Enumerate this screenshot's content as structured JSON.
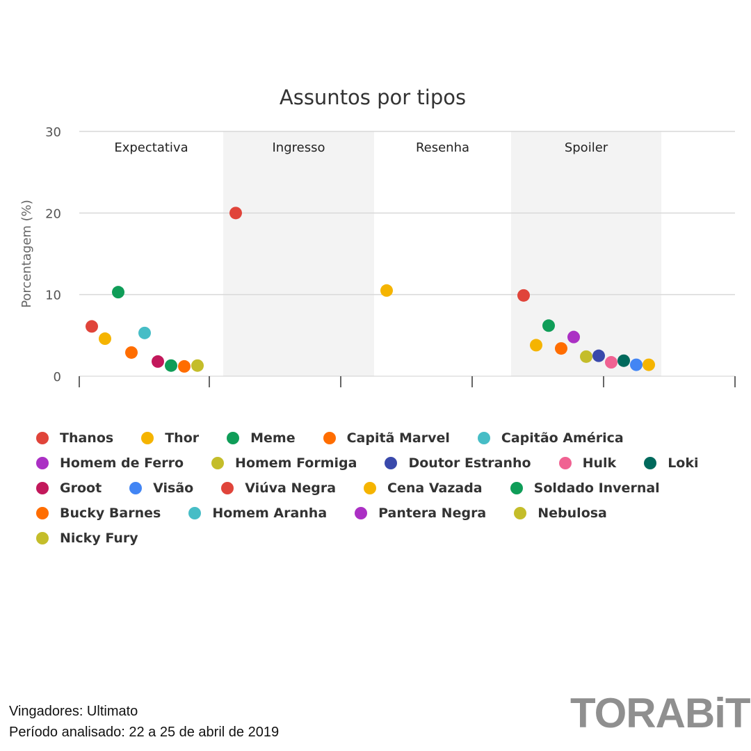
{
  "chart_data": {
    "type": "scatter",
    "title": "Assuntos por tipos",
    "ylabel": "Porcentagem (%)",
    "ylim": [
      0,
      30
    ],
    "yticks": [
      0,
      10,
      20,
      30
    ],
    "grid": true,
    "legend_position": "bottom",
    "bands": [
      "Expectativa",
      "Ingresso",
      "Resenha",
      "Spoiler"
    ],
    "series": [
      {
        "name": "Thanos",
        "color": "#e0443a",
        "points": [
          {
            "band": "Expectativa",
            "y": 6.1
          },
          {
            "band": "Ingresso",
            "y": 20.0
          },
          {
            "band": "Spoiler",
            "y": 9.9
          }
        ]
      },
      {
        "name": "Thor",
        "color": "#f5b400",
        "points": [
          {
            "band": "Expectativa",
            "y": 4.6
          },
          {
            "band": "Resenha",
            "y": 10.5
          },
          {
            "band": "Spoiler",
            "y": 3.8
          }
        ]
      },
      {
        "name": "Meme",
        "color": "#0f9d58",
        "points": [
          {
            "band": "Expectativa",
            "y": 10.3
          },
          {
            "band": "Spoiler",
            "y": 6.2
          }
        ]
      },
      {
        "name": "Capitã Marvel",
        "color": "#ff6d00",
        "points": [
          {
            "band": "Expectativa",
            "y": 2.9
          },
          {
            "band": "Spoiler",
            "y": 3.4
          }
        ]
      },
      {
        "name": "Capitão América",
        "color": "#46bdc6",
        "points": [
          {
            "band": "Expectativa",
            "y": 5.3
          }
        ]
      },
      {
        "name": "Homem de Ferro",
        "color": "#ab30c4",
        "points": [
          {
            "band": "Spoiler",
            "y": 4.8
          }
        ]
      },
      {
        "name": "Homem Formiga",
        "color": "#c4bd2a",
        "points": [
          {
            "band": "Spoiler",
            "y": 2.4
          }
        ]
      },
      {
        "name": "Doutor Estranho",
        "color": "#3949ab",
        "points": [
          {
            "band": "Spoiler",
            "y": 2.5
          }
        ]
      },
      {
        "name": "Hulk",
        "color": "#f06292",
        "points": [
          {
            "band": "Spoiler",
            "y": 1.7
          }
        ]
      },
      {
        "name": "Loki",
        "color": "#00695c",
        "points": [
          {
            "band": "Spoiler",
            "y": 1.9
          }
        ]
      },
      {
        "name": "Groot",
        "color": "#c2185b",
        "points": [
          {
            "band": "Expectativa",
            "y": 1.8
          }
        ]
      },
      {
        "name": "Visão",
        "color": "#4285f4",
        "points": [
          {
            "band": "Spoiler",
            "y": 1.4
          }
        ]
      },
      {
        "name": "Viúva Negra",
        "color": "#e0443a",
        "points": []
      },
      {
        "name": "Cena Vazada",
        "color": "#f5b400",
        "points": [
          {
            "band": "Spoiler",
            "y": 1.4
          }
        ]
      },
      {
        "name": "Soldado Invernal",
        "color": "#0f9d58",
        "points": [
          {
            "band": "Expectativa",
            "y": 1.3
          }
        ]
      },
      {
        "name": "Bucky Barnes",
        "color": "#ff6d00",
        "points": [
          {
            "band": "Expectativa",
            "y": 1.2
          }
        ]
      },
      {
        "name": "Homem Aranha",
        "color": "#46bdc6",
        "points": []
      },
      {
        "name": "Pantera Negra",
        "color": "#ab30c4",
        "points": []
      },
      {
        "name": "Nebulosa",
        "color": "#c4bd2a",
        "points": []
      },
      {
        "name": "Nicky Fury",
        "color": "#c4bd2a",
        "points": [
          {
            "band": "Expectativa",
            "y": 1.3
          }
        ]
      }
    ]
  },
  "footer": {
    "line1": "Vingadores: Ultimato",
    "line2": "Período analisado: 22 a 25 de abril de 2019"
  },
  "logo_text": "TORABiT"
}
